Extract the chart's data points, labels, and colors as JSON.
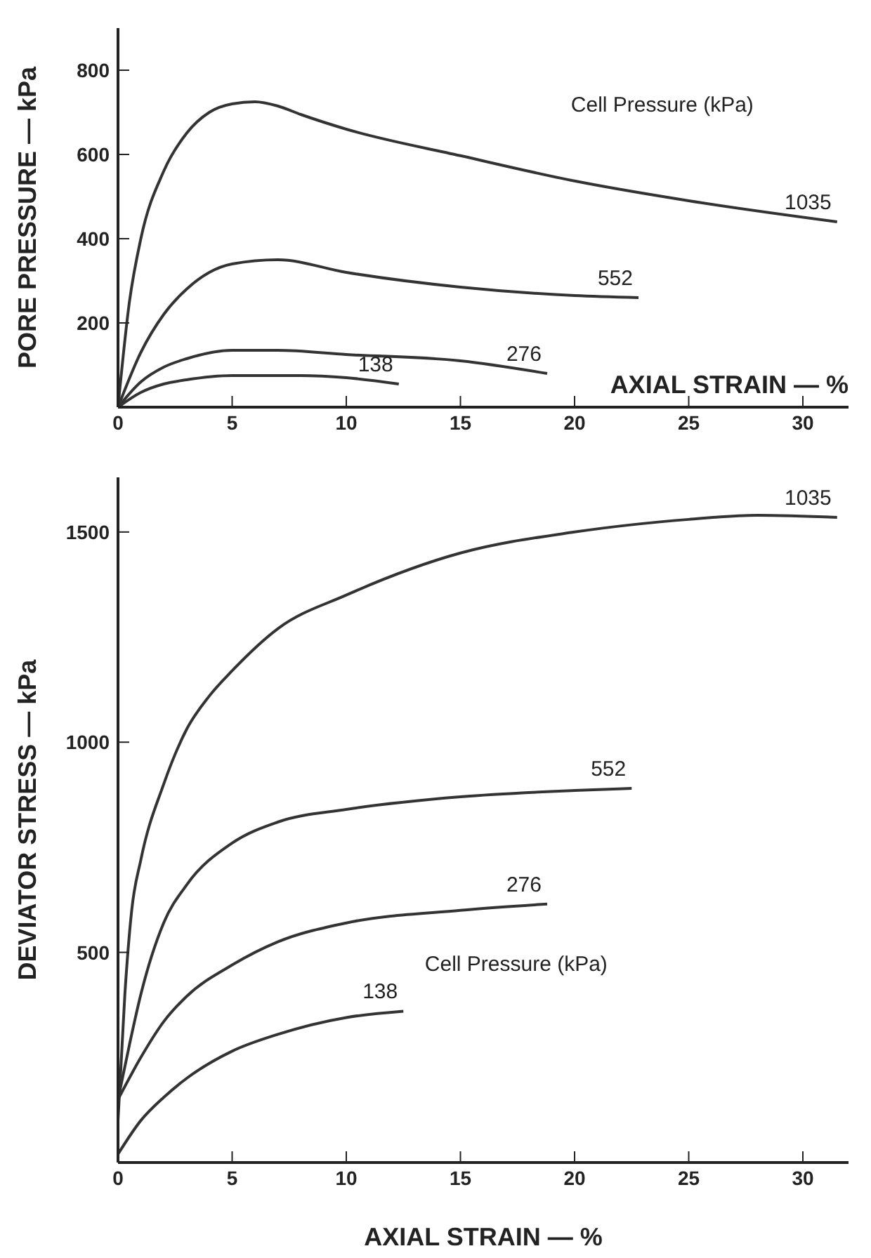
{
  "chart_data": [
    {
      "type": "line",
      "xlabel": "AXIAL STRAIN — %",
      "ylabel": "PORE PRESSURE — kPa",
      "xlim": [
        0,
        32
      ],
      "ylim": [
        0,
        900
      ],
      "xticks": [
        0,
        5,
        10,
        15,
        20,
        25,
        30
      ],
      "yticks": [
        200,
        400,
        600,
        800
      ],
      "grid": false,
      "legend": false,
      "marker": "none",
      "line_style": "solid",
      "annotations": [
        "Cell Pressure (kPa)"
      ],
      "series": [
        {
          "name": "1035",
          "color": "#333333",
          "x": [
            0,
            0.5,
            1,
            2,
            3,
            4,
            5,
            6,
            7,
            8,
            10,
            15,
            20,
            25,
            31.5
          ],
          "values": [
            0,
            250,
            400,
            560,
            650,
            700,
            720,
            725,
            715,
            695,
            660,
            597,
            537,
            490,
            440
          ]
        },
        {
          "name": "552",
          "color": "#333333",
          "x": [
            0,
            1,
            2,
            3,
            4,
            5,
            7,
            10,
            15,
            20,
            22.8
          ],
          "values": [
            0,
            130,
            220,
            280,
            320,
            340,
            350,
            320,
            285,
            265,
            260
          ]
        },
        {
          "name": "276",
          "color": "#333333",
          "x": [
            0,
            1,
            2,
            3,
            5,
            7,
            10,
            15,
            18.8
          ],
          "values": [
            0,
            60,
            95,
            115,
            135,
            135,
            125,
            110,
            80
          ]
        },
        {
          "name": "138",
          "color": "#333333",
          "x": [
            0,
            1,
            2,
            3,
            5,
            8,
            10,
            12.3
          ],
          "values": [
            0,
            35,
            55,
            65,
            75,
            75,
            70,
            55
          ]
        }
      ]
    },
    {
      "type": "line",
      "xlabel": "AXIAL STRAIN — %",
      "ylabel": "DEVIATOR STRESS — kPa",
      "xlim": [
        0,
        32
      ],
      "ylim": [
        0,
        1630
      ],
      "xticks": [
        0,
        5,
        10,
        15,
        20,
        25,
        30
      ],
      "yticks": [
        500,
        1000,
        1500
      ],
      "grid": false,
      "legend": false,
      "marker": "none",
      "line_style": "solid",
      "annotations": [
        "Cell Pressure (kPa)"
      ],
      "series": [
        {
          "name": "1035",
          "color": "#333333",
          "x": [
            0,
            0.3,
            0.6,
            1,
            2,
            3,
            4,
            5,
            7,
            10,
            15,
            20,
            25,
            28,
            31.5
          ],
          "values": [
            100,
            400,
            600,
            720,
            900,
            1030,
            1110,
            1170,
            1270,
            1350,
            1450,
            1500,
            1530,
            1540,
            1535
          ]
        },
        {
          "name": "552",
          "color": "#333333",
          "x": [
            0,
            0.5,
            1,
            2,
            3,
            5,
            7,
            10,
            15,
            20,
            22.5
          ],
          "values": [
            150,
            280,
            400,
            570,
            660,
            760,
            810,
            840,
            870,
            885,
            890
          ]
        },
        {
          "name": "276",
          "color": "#333333",
          "x": [
            0,
            1,
            2,
            3,
            5,
            7,
            10,
            15,
            18.8
          ],
          "values": [
            150,
            250,
            335,
            395,
            470,
            525,
            570,
            600,
            615
          ]
        },
        {
          "name": "138",
          "color": "#333333",
          "x": [
            0,
            1,
            2,
            3,
            5,
            7,
            10,
            12.5
          ],
          "values": [
            20,
            100,
            155,
            200,
            265,
            305,
            345,
            360
          ]
        }
      ]
    }
  ]
}
